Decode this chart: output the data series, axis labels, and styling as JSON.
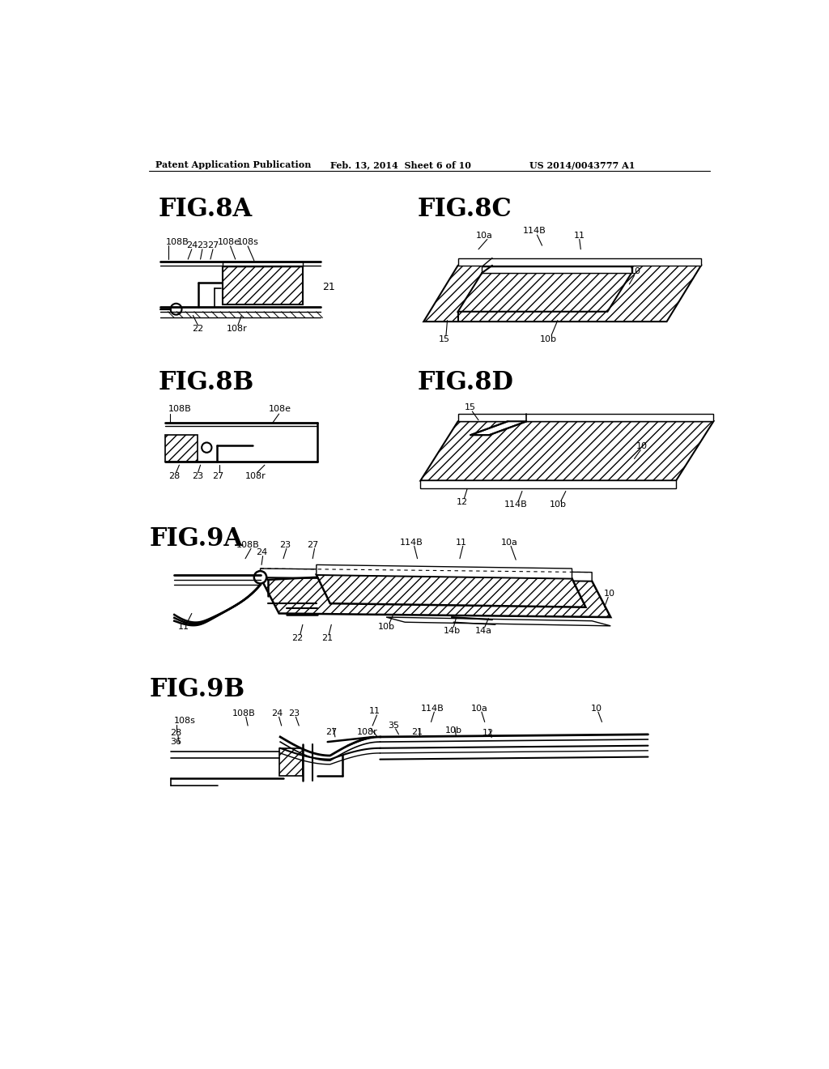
{
  "bg_color": "#ffffff",
  "line_color": "#000000",
  "header_left": "Patent Application Publication",
  "header_mid": "Feb. 13, 2014  Sheet 6 of 10",
  "header_right": "US 2014/0043777 A1"
}
